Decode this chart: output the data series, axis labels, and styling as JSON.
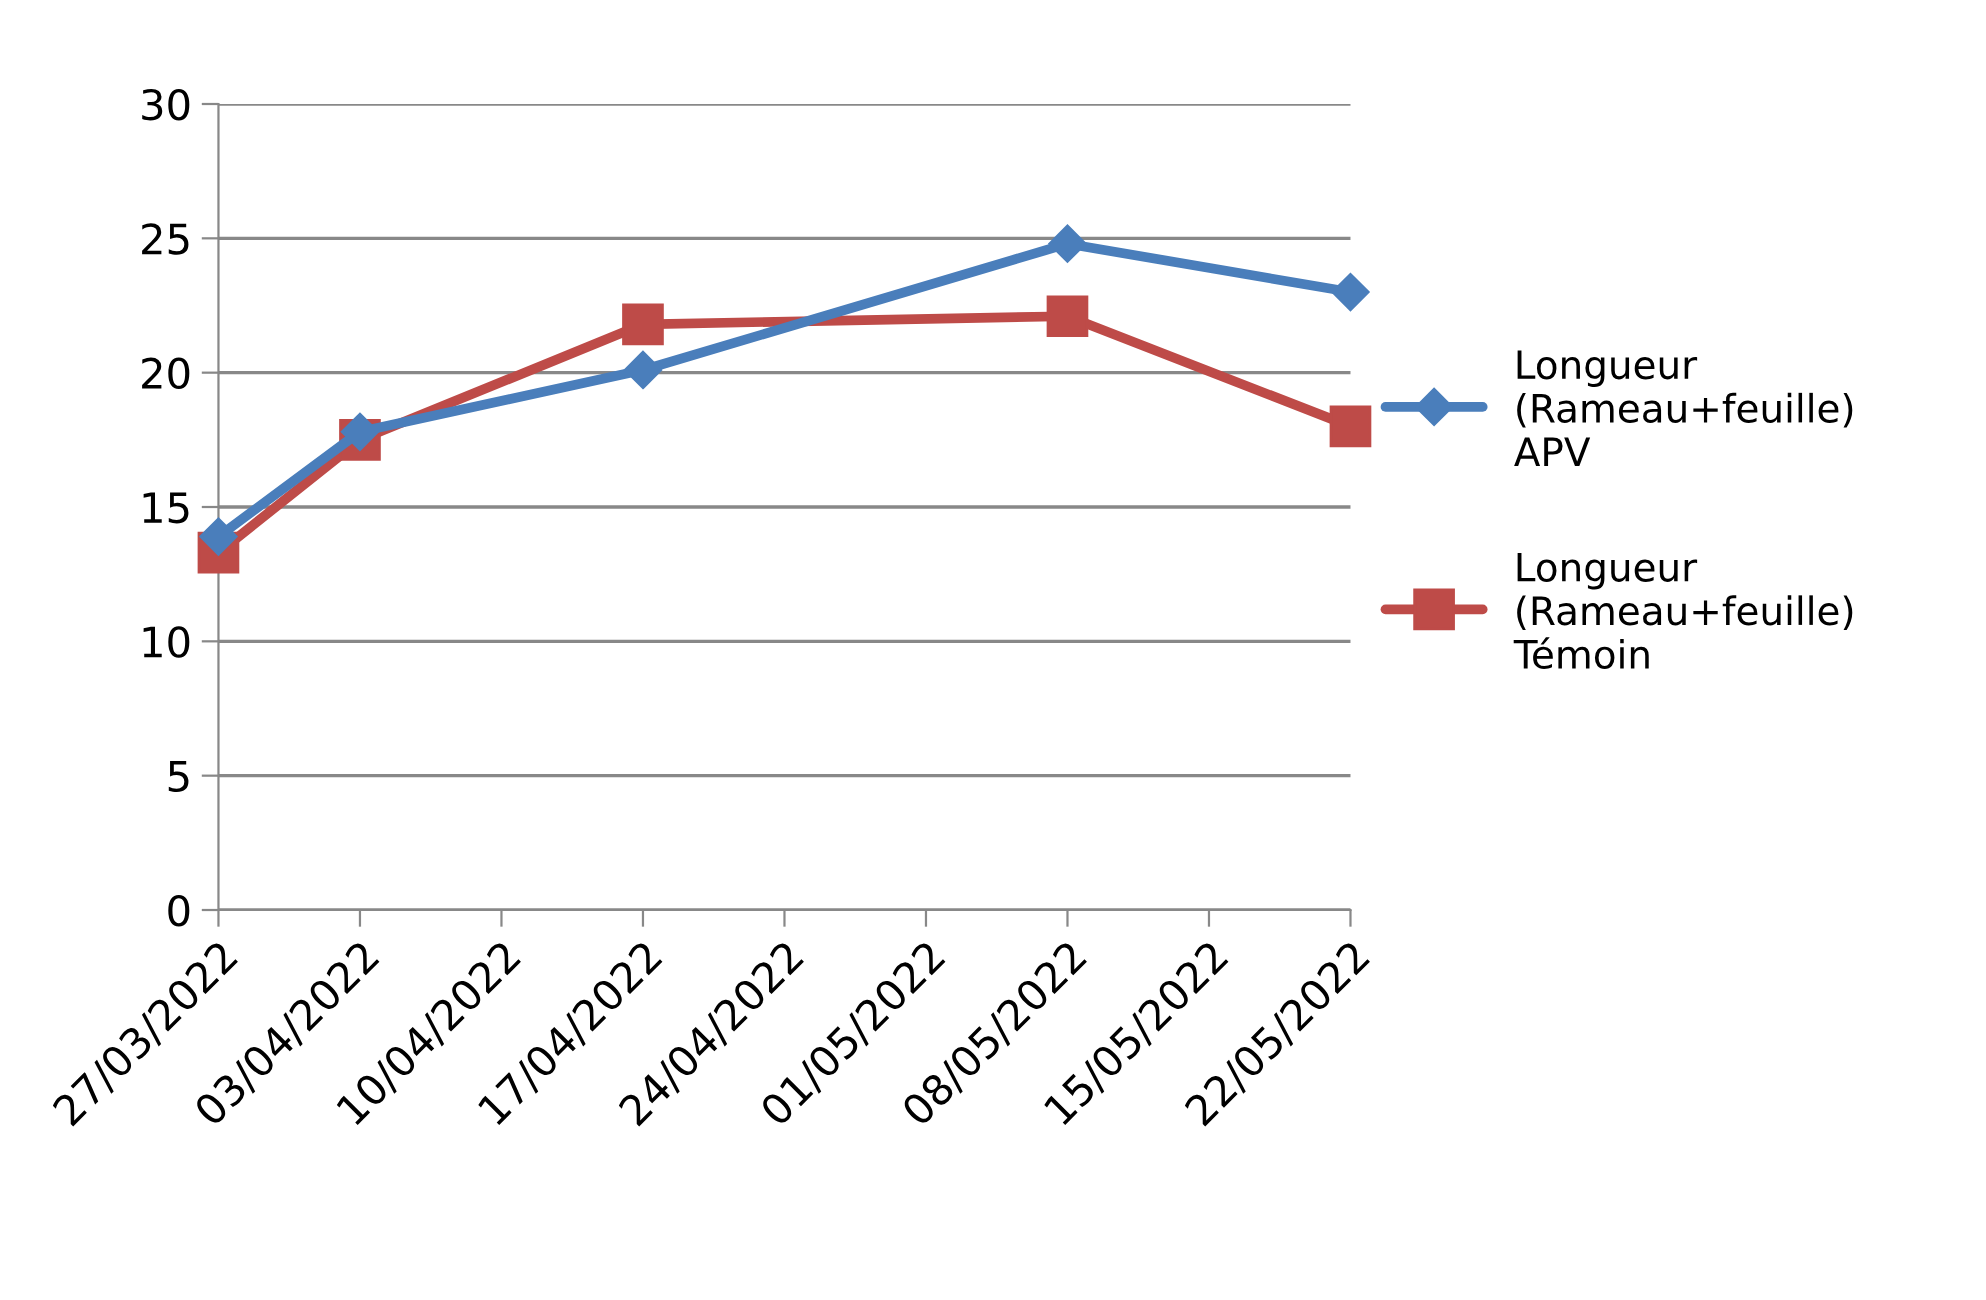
{
  "chart_data": {
    "type": "line",
    "x": [
      "2022-03-27",
      "2022-04-03",
      "2022-04-17",
      "2022-05-08",
      "2022-05-22"
    ],
    "series": [
      {
        "name": "Longueur (Rameau+feuille) APV",
        "color": "#4a7ebb",
        "marker": "diamond",
        "values": [
          13.9,
          17.8,
          20.1,
          24.8,
          23.0
        ]
      },
      {
        "name": "Longueur (Rameau+feuille) Témoin",
        "color": "#be4b48",
        "marker": "square",
        "values": [
          13.3,
          17.5,
          21.8,
          22.1,
          18.0
        ]
      }
    ],
    "xlim": [
      "2022-03-27",
      "2022-05-22"
    ],
    "xticks": [
      {
        "value": "2022-03-27",
        "label": "27/03/2022"
      },
      {
        "value": "2022-04-03",
        "label": "03/04/2022"
      },
      {
        "value": "2022-04-10",
        "label": "10/04/2022"
      },
      {
        "value": "2022-04-17",
        "label": "17/04/2022"
      },
      {
        "value": "2022-04-24",
        "label": "24/04/2022"
      },
      {
        "value": "2022-05-01",
        "label": "01/05/2022"
      },
      {
        "value": "2022-05-08",
        "label": "08/05/2022"
      },
      {
        "value": "2022-05-15",
        "label": "15/05/2022"
      },
      {
        "value": "2022-05-22",
        "label": "22/05/2022"
      }
    ],
    "ylim": [
      0,
      30
    ],
    "yticks": [
      0,
      5,
      10,
      15,
      20,
      25,
      30
    ],
    "grid": "y",
    "legend": "right",
    "line_style": "solid"
  }
}
